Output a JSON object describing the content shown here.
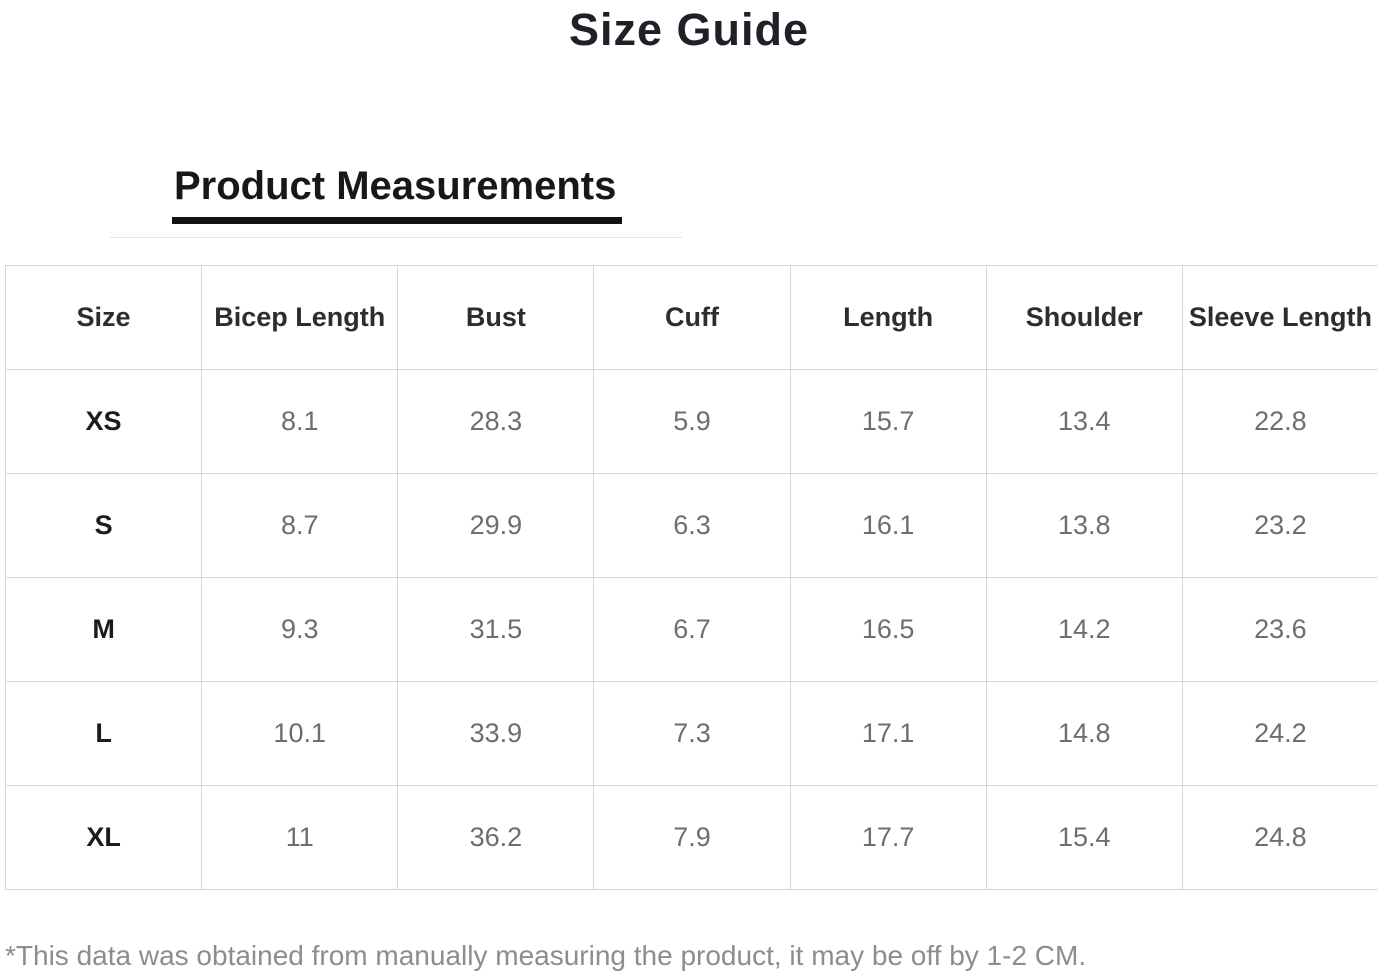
{
  "title": "Size Guide",
  "section": {
    "heading": "Product Measurements"
  },
  "table": {
    "columns": [
      "Size",
      "Bicep Length",
      "Bust",
      "Cuff",
      "Length",
      "Shoulder",
      "Sleeve Length"
    ],
    "rows": [
      [
        "XS",
        "8.1",
        "28.3",
        "5.9",
        "15.7",
        "13.4",
        "22.8"
      ],
      [
        "S",
        "8.7",
        "29.9",
        "6.3",
        "16.1",
        "13.8",
        "23.2"
      ],
      [
        "M",
        "9.3",
        "31.5",
        "6.7",
        "16.5",
        "14.2",
        "23.6"
      ],
      [
        "L",
        "10.1",
        "33.9",
        "7.3",
        "17.1",
        "14.8",
        "24.2"
      ],
      [
        "XL",
        "11",
        "36.2",
        "7.9",
        "17.7",
        "15.4",
        "24.8"
      ]
    ]
  },
  "footnote": "*This data was obtained from manually measuring the product, it may be off by 1-2 CM.",
  "colors": {
    "title_text": "#1f2128",
    "heading_text": "#181818",
    "heading_underline": "#131313",
    "header_cell_text": "#2d2d2d",
    "size_cell_text": "#1c1c1c",
    "measurement_text": "#6e6e6e",
    "table_border": "#d7d7d7",
    "footnote_text": "#8d8d8d",
    "background": "#ffffff"
  }
}
